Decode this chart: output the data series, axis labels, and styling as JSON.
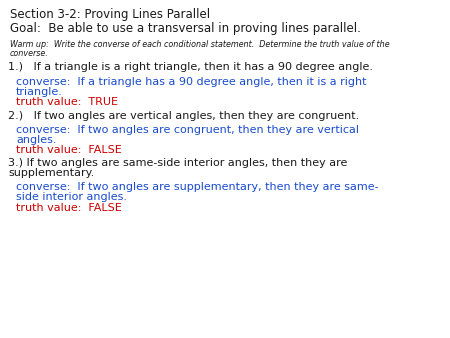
{
  "bg_color": "#ffffff",
  "title1": "Section 3-2: Proving Lines Parallel",
  "title2": "Goal:  Be able to use a transversal in proving lines parallel.",
  "warmup_line1": "Warm up:  Write the converse of each conditional statement.  Determine the truth value of the",
  "warmup_line2": "converse.",
  "items": [
    {
      "statement": "1.)   If a triangle is a right triangle, then it has a 90 degree angle.",
      "converse_line1": "converse:  If a triangle has a 90 degree angle, then it is a right",
      "converse_line2": "triangle.",
      "truth": "truth value:  TRUE"
    },
    {
      "statement": "2.)   If two angles are vertical angles, then they are congruent.",
      "converse_line1": "converse:  If two angles are congruent, then they are vertical",
      "converse_line2": "angles.",
      "truth": "truth value:  FALSE"
    },
    {
      "statement": "3.) If two angles are same-side interior angles, then they are",
      "statement_line2": "supplementary.",
      "converse_line1": "converse:  If two angles are supplementary, then they are same-",
      "converse_line2": "side interior angles.",
      "truth": "truth value:  FALSE"
    }
  ],
  "black": "#1a1a1a",
  "blue": "#1a4bcc",
  "red": "#cc0000",
  "title_fontsize": 8.5,
  "warmup_fontsize": 5.8,
  "statement_fontsize": 8.0,
  "converse_fontsize": 8.0,
  "truth_fontsize": 8.0
}
